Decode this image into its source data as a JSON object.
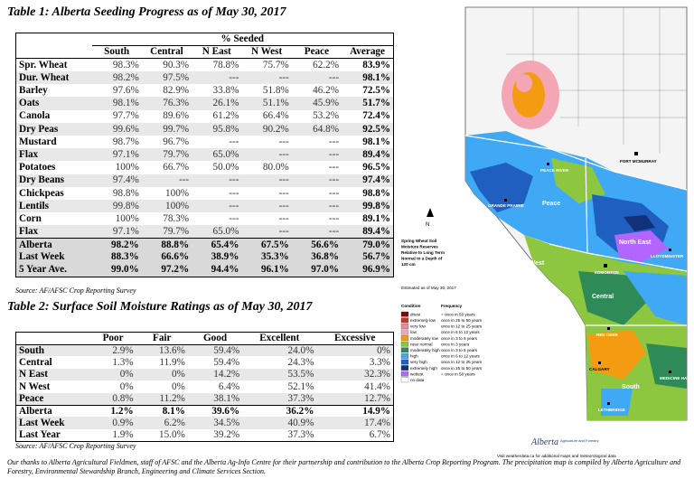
{
  "table1": {
    "title": "Table 1: Alberta Seeding Progress as of May 30, 2017",
    "group_header": "% Seeded",
    "columns": [
      "South",
      "Central",
      "N East",
      "N West",
      "Peace",
      "Average"
    ],
    "rows": [
      {
        "label": "Spr. Wheat",
        "values": [
          "98.3%",
          "90.3%",
          "78.8%",
          "75.7%",
          "62.2%",
          "83.9%"
        ]
      },
      {
        "label": "Dur. Wheat",
        "values": [
          "98.2%",
          "97.5%",
          "---",
          "---",
          "---",
          "98.1%"
        ]
      },
      {
        "label": "Barley",
        "values": [
          "97.6%",
          "82.9%",
          "33.8%",
          "51.8%",
          "46.2%",
          "72.5%"
        ]
      },
      {
        "label": "Oats",
        "values": [
          "98.1%",
          "76.3%",
          "26.1%",
          "51.1%",
          "45.9%",
          "51.7%"
        ]
      },
      {
        "label": "Canola",
        "values": [
          "97.7%",
          "89.6%",
          "61.2%",
          "66.4%",
          "53.2%",
          "72.4%"
        ]
      },
      {
        "label": "Dry Peas",
        "values": [
          "99.6%",
          "99.7%",
          "95.8%",
          "90.2%",
          "64.8%",
          "92.5%"
        ]
      },
      {
        "label": "Mustard",
        "values": [
          "98.7%",
          "96.7%",
          "---",
          "---",
          "---",
          "98.1%"
        ]
      },
      {
        "label": "Flax",
        "values": [
          "97.1%",
          "79.7%",
          "65.0%",
          "---",
          "---",
          "89.4%"
        ]
      },
      {
        "label": "Potatoes",
        "values": [
          "100%",
          "66.7%",
          "50.0%",
          "80.0%",
          "---",
          "96.5%"
        ]
      },
      {
        "label": "Dry Beans",
        "values": [
          "97.4%",
          "---",
          "---",
          "---",
          "---",
          "97.4%"
        ]
      },
      {
        "label": "Chickpeas",
        "values": [
          "98.8%",
          "100%",
          "---",
          "---",
          "---",
          "98.8%"
        ]
      },
      {
        "label": "Lentils",
        "values": [
          "99.8%",
          "100%",
          "---",
          "---",
          "---",
          "99.8%"
        ]
      },
      {
        "label": "Corn",
        "values": [
          "100%",
          "78.3%",
          "---",
          "---",
          "---",
          "89.1%"
        ]
      },
      {
        "label": "Flax",
        "values": [
          "97.1%",
          "79.7%",
          "65.0%",
          "---",
          "---",
          "89.4%"
        ]
      }
    ],
    "summary": [
      {
        "label": "Alberta",
        "values": [
          "98.2%",
          "88.8%",
          "65.4%",
          "67.5%",
          "56.6%",
          "79.0%"
        ]
      },
      {
        "label": "Last Week",
        "values": [
          "88.3%",
          "66.6%",
          "38.9%",
          "35.3%",
          "36.8%",
          "56.7%"
        ]
      },
      {
        "label": "5 Year Ave.",
        "values": [
          "99.0%",
          "97.2%",
          "94.4%",
          "96.1%",
          "97.0%",
          "96.9%"
        ]
      }
    ],
    "source": "Source: AF/AFSC Crop Reporting Survey"
  },
  "table2": {
    "title": "Table 2: Surface Soil Moisture Ratings as of May 30, 2017",
    "columns": [
      "Poor",
      "Fair",
      "Good",
      "Excellent",
      "Excessive"
    ],
    "rows": [
      {
        "label": "South",
        "values": [
          "2.9%",
          "13.6%",
          "59.4%",
          "24.0%",
          "0%"
        ]
      },
      {
        "label": "Central",
        "values": [
          "1.3%",
          "11.9%",
          "59.4%",
          "24.3%",
          "3.3%"
        ]
      },
      {
        "label": "N East",
        "values": [
          "0%",
          "0%",
          "14.2%",
          "53.5%",
          "32.3%"
        ]
      },
      {
        "label": "N West",
        "values": [
          "0%",
          "0%",
          "6.4%",
          "52.1%",
          "41.4%"
        ]
      },
      {
        "label": "Peace",
        "values": [
          "0.8%",
          "11.2%",
          "38.1%",
          "37.3%",
          "12.7%"
        ]
      },
      {
        "label": "Alberta",
        "values": [
          "1.2%",
          "8.1%",
          "39.6%",
          "36.2%",
          "14.9%"
        ]
      },
      {
        "label": "Last Week",
        "values": [
          "0.9%",
          "6.2%",
          "34.5%",
          "40.9%",
          "17.4%"
        ]
      },
      {
        "label": "Last Year",
        "values": [
          "1.9%",
          "15.0%",
          "39.2%",
          "37.3%",
          "6.7%"
        ]
      }
    ],
    "source": "Source: AF/AFSC Crop Reporting Survey"
  },
  "thanks": "Our thanks to Alberta Agricultural Fieldmen, staff of AFSC and the Alberta Ag-Info Centre for their partnership and contribution to the Alberta Crop Reporting Program. The precipitation map is compiled by Alberta Agriculture and Forestry, Environmental Stewardship Branch, Engineering and Climate Services Section.",
  "map": {
    "region_labels": [
      "Peace",
      "North West",
      "North East",
      "Central",
      "South"
    ],
    "city_labels": [
      "FORT MCMURRAY",
      "PEACE RIVER",
      "GRANDE PRAIRIE",
      "EDMONTON",
      "LLOYDMINSTER",
      "RED DEER",
      "CALGARY",
      "MEDICINE HAT",
      "LETHBRIDGE"
    ],
    "map_title": "Spring Wheat Soil Moisture Reserves Relative to Long Term Normal to a Depth of 120 cm",
    "estimated": "Estimated as of May 30, 2017",
    "legend_head": [
      "Condition",
      "Frequency"
    ],
    "legend": [
      {
        "cond": "driest",
        "freq": "= once in 50 years",
        "color": "#8b0000"
      },
      {
        "cond": "extremely low",
        "freq": "once in 25 to 50 years",
        "color": "#c0392b"
      },
      {
        "cond": "very low",
        "freq": "once in 12 to 25 years",
        "color": "#e88aa0"
      },
      {
        "cond": "low",
        "freq": "once in 6 to 12 years",
        "color": "#f4a6b5"
      },
      {
        "cond": "moderately low",
        "freq": "once in 3 to 6 years",
        "color": "#f39c12"
      },
      {
        "cond": "near normal",
        "freq": "once in 3 years",
        "color": "#8dc63f"
      },
      {
        "cond": "moderately high",
        "freq": "once in 3 to 6 years",
        "color": "#2e8b57"
      },
      {
        "cond": "high",
        "freq": "once in 6 to 12 years",
        "color": "#3fa9f5"
      },
      {
        "cond": "very high",
        "freq": "once in 12 to 25 years",
        "color": "#1f5fbf"
      },
      {
        "cond": "extremely high",
        "freq": "once in 25 to 50 years",
        "color": "#13307a"
      },
      {
        "cond": "wettest",
        "freq": "= once in 50 years",
        "color": "#b266ff"
      },
      {
        "cond": "no data",
        "freq": "",
        "color": "#ffffff"
      }
    ],
    "footer": "Visit weatherdata.ca for additional maps and meteorological data",
    "agency": "Alberta",
    "agency_sub": "Agriculture and Forestry"
  }
}
